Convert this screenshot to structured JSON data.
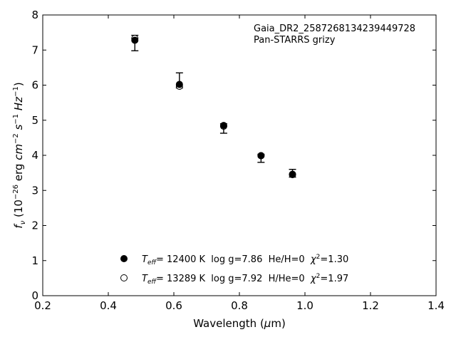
{
  "chart_data": {
    "type": "scatter",
    "xlabel": "Wavelength (μm)",
    "ylabel": "f_ν (10^-26 erg cm^-2 s^-1 Hz^-1)",
    "xlim": [
      0.2,
      1.4
    ],
    "ylim": [
      0,
      8
    ],
    "xticks": [
      "0.2",
      "0.4",
      "0.6",
      "0.8",
      "1.0",
      "1.2",
      "1.4"
    ],
    "yticks": [
      "0",
      "1",
      "2",
      "3",
      "4",
      "5",
      "6",
      "7",
      "8"
    ],
    "grid": false,
    "annotations": [
      "Gaia_DR2_2587268134239449728",
      "Pan-STARRS grizy"
    ],
    "observed": {
      "x": [
        0.481,
        0.617,
        0.752,
        0.866,
        0.962
      ],
      "y": [
        7.2,
        6.02,
        4.78,
        3.95,
        3.48
      ],
      "yerr_low": [
        0.22,
        0.1,
        0.15,
        0.15,
        0.1
      ],
      "yerr_high": [
        0.22,
        0.33,
        0.12,
        0.08,
        0.12
      ]
    },
    "series": [
      {
        "name": "T_eff= 12400 K  log g=7.86  He/H=0  χ²=1.30",
        "marker": "filled-circle",
        "x": [
          0.481,
          0.617,
          0.752,
          0.866,
          0.962
        ],
        "y": [
          7.28,
          6.02,
          4.85,
          3.99,
          3.45
        ]
      },
      {
        "name": "T_eff= 13289 K  log g=7.92  H/He=0  χ²=1.97",
        "marker": "open-circle",
        "x": [
          0.481,
          0.617,
          0.752,
          0.866,
          0.962
        ],
        "y": [
          7.33,
          5.97,
          4.83,
          3.99,
          3.46
        ]
      }
    ],
    "legend": {
      "placement": "bottom-center",
      "entries": [
        {
          "teff_sym": "T",
          "teff_sub": "eff",
          "text": "= 12400 K  log g=7.86  He/H=0  ",
          "chi": "χ",
          "chi_sup": "2",
          "chi_val": "=1.30"
        },
        {
          "teff_sym": "T",
          "teff_sub": "eff",
          "text": "= 13289 K  log g=7.92  H/He=0  ",
          "chi": "χ",
          "chi_sup": "2",
          "chi_val": "=1.97"
        }
      ]
    },
    "colors": {
      "marker": "#000000",
      "axes": "#000000",
      "background": "#ffffff"
    }
  }
}
